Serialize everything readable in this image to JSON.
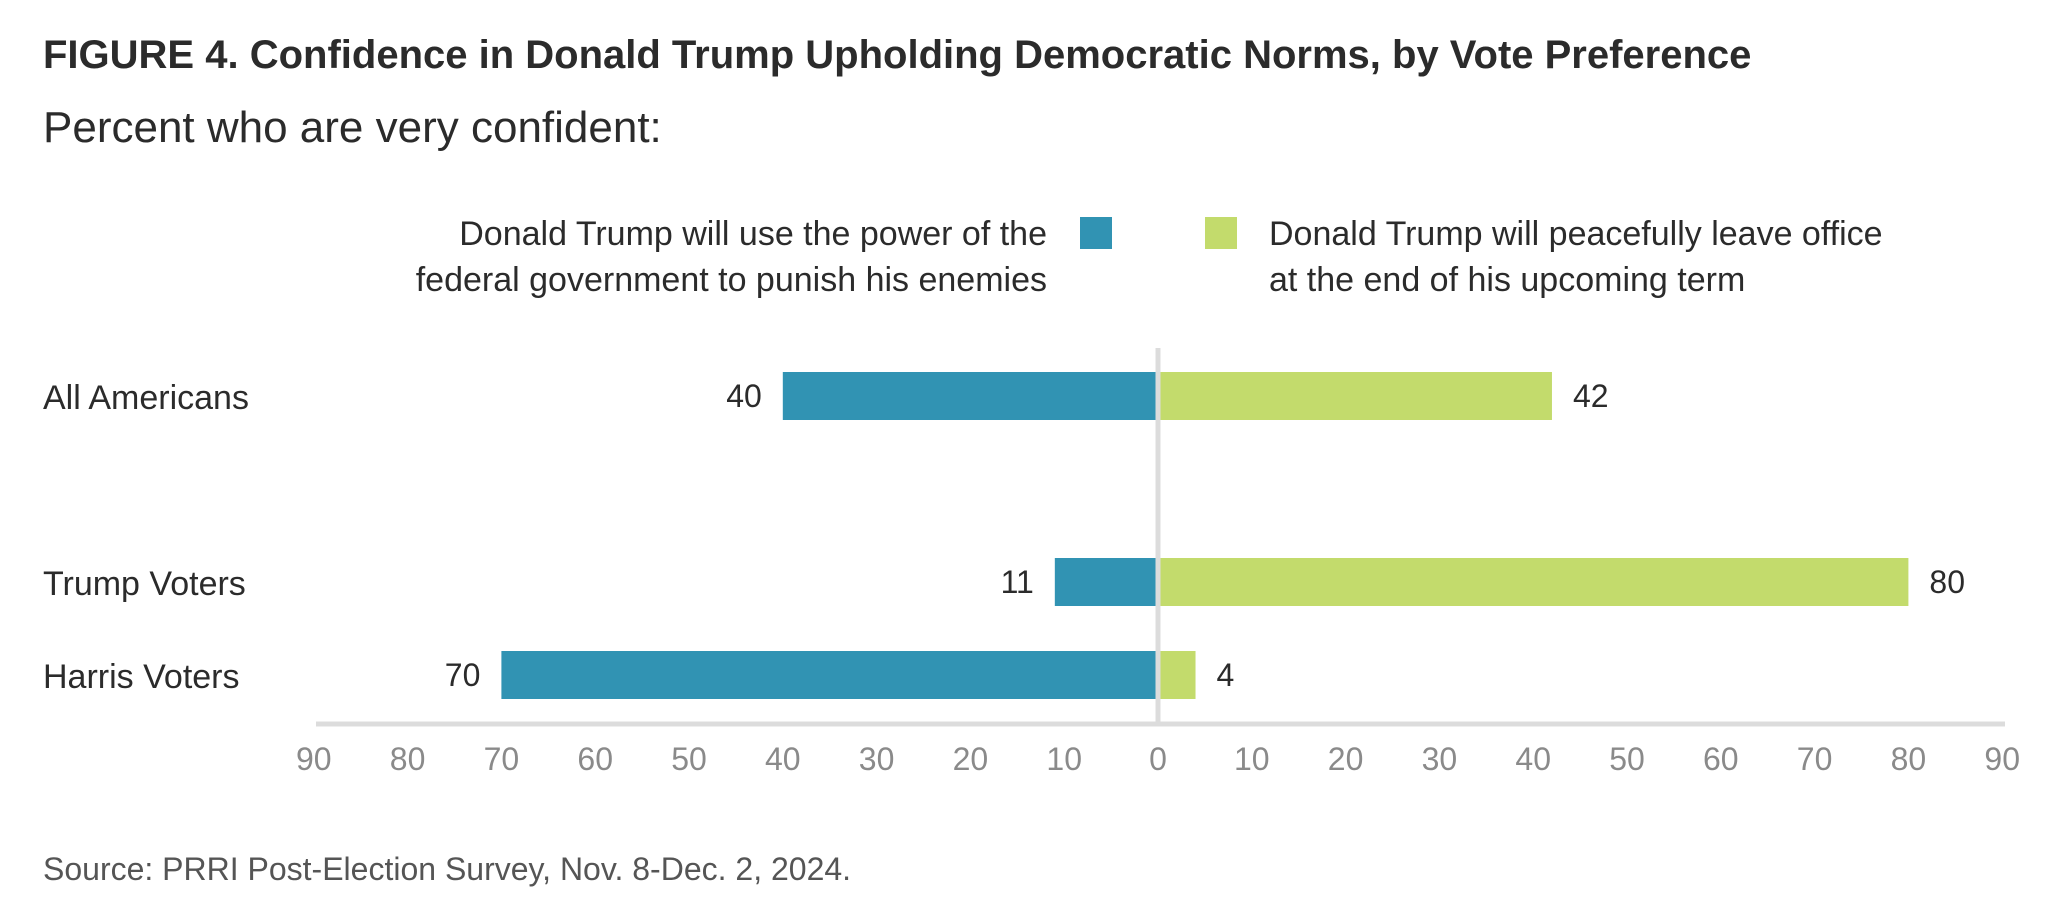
{
  "chart_data": {
    "type": "bar",
    "orientation": "horizontal-diverging",
    "title": "FIGURE 4. Confidence in Donald Trump Upholding Democratic Norms, by Vote Preference",
    "subtitle": "Percent who are very confident:",
    "categories": [
      "All Americans",
      "Trump Voters",
      "Harris Voters"
    ],
    "series": [
      {
        "name": "Donald Trump will use the power of the federal government to punish his enemies",
        "name_lines": [
          "Donald Trump will use the power of the",
          "federal government to punish his enemies"
        ],
        "direction": "left",
        "color": "#3193b3",
        "values": [
          40,
          11,
          70
        ]
      },
      {
        "name": "Donald Trump will peacefully leave office at the end of his upcoming term",
        "name_lines": [
          "Donald Trump will peacefully leave office",
          "at the end of his upcoming term"
        ],
        "direction": "right",
        "color": "#c3db6c",
        "values": [
          42,
          80,
          4
        ]
      }
    ],
    "xlim": [
      -90,
      90
    ],
    "ticks": [
      "90",
      "80",
      "70",
      "60",
      "50",
      "40",
      "30",
      "20",
      "10",
      "0",
      "10",
      "20",
      "30",
      "40",
      "50",
      "60",
      "70",
      "80",
      "90"
    ],
    "grid": false,
    "legend_position": "top",
    "source": "Source: PRRI Post-Election Survey, Nov. 8-Dec. 2, 2024."
  },
  "colors": {
    "axis": "#dcdcdc",
    "center_line": "#dcdcdc",
    "text": "#2b2b2b",
    "tick": "#8a8a8a"
  }
}
